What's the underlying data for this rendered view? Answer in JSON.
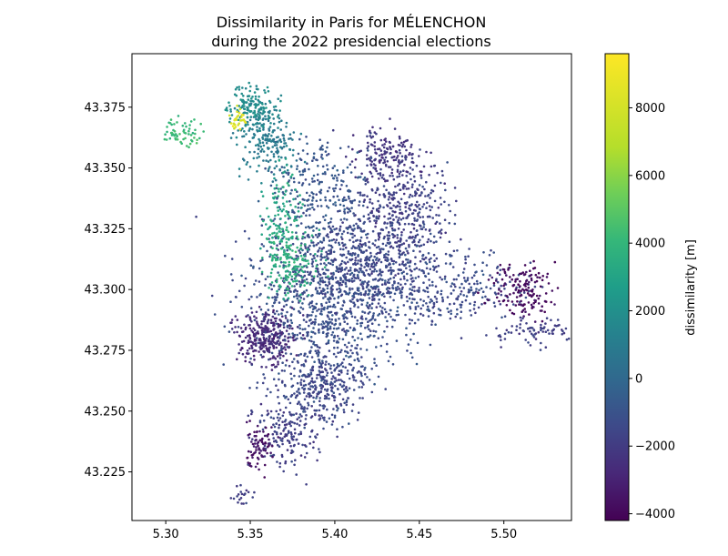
{
  "chart_data": {
    "type": "scatter",
    "title": [
      "Dissimilarity in Paris for MÉLENCHON",
      "during the 2022 presidencial elections"
    ],
    "xlabel": "",
    "ylabel": "",
    "xlim": [
      5.28,
      5.54
    ],
    "ylim": [
      43.205,
      43.397
    ],
    "x_ticks": [
      5.3,
      5.35,
      5.4,
      5.45,
      5.5
    ],
    "x_tick_labels": [
      "5.30",
      "5.35",
      "5.40",
      "5.45",
      "5.50"
    ],
    "y_ticks": [
      43.225,
      43.25,
      43.275,
      43.3,
      43.325,
      43.35,
      43.375
    ],
    "y_tick_labels": [
      "43.225",
      "43.250",
      "43.275",
      "43.300",
      "43.325",
      "43.350",
      "43.375"
    ],
    "grid": false,
    "colorbar": {
      "label": "dissimilarity [m]",
      "range": [
        -4200,
        9600
      ],
      "ticks": [
        -4000,
        -2000,
        0,
        2000,
        4000,
        6000,
        8000
      ],
      "tick_labels": [
        "−4000",
        "−2000",
        "0",
        "2000",
        "4000",
        "6000",
        "8000"
      ],
      "colormap": "viridis"
    },
    "clusters": [
      {
        "x": 5.395,
        "y": 43.295,
        "sx": 0.035,
        "sy": 0.022,
        "value": -800,
        "n": 900
      },
      {
        "x": 5.42,
        "y": 43.31,
        "sx": 0.03,
        "sy": 0.015,
        "value": -1200,
        "n": 500
      },
      {
        "x": 5.44,
        "y": 43.335,
        "sx": 0.02,
        "sy": 0.015,
        "value": -1500,
        "n": 350
      },
      {
        "x": 5.43,
        "y": 43.355,
        "sx": 0.015,
        "sy": 0.008,
        "value": -2000,
        "n": 150
      },
      {
        "x": 5.39,
        "y": 43.34,
        "sx": 0.02,
        "sy": 0.015,
        "value": -500,
        "n": 250
      },
      {
        "x": 5.36,
        "y": 43.36,
        "sx": 0.012,
        "sy": 0.01,
        "value": 1500,
        "n": 200
      },
      {
        "x": 5.35,
        "y": 43.375,
        "sx": 0.01,
        "sy": 0.006,
        "value": 2500,
        "n": 150
      },
      {
        "x": 5.37,
        "y": 43.33,
        "sx": 0.008,
        "sy": 0.015,
        "value": 4000,
        "n": 120
      },
      {
        "x": 5.375,
        "y": 43.31,
        "sx": 0.012,
        "sy": 0.01,
        "value": 4500,
        "n": 150
      },
      {
        "x": 5.31,
        "y": 43.365,
        "sx": 0.008,
        "sy": 0.004,
        "value": 5000,
        "n": 60
      },
      {
        "x": 5.343,
        "y": 43.37,
        "sx": 0.004,
        "sy": 0.003,
        "value": 9000,
        "n": 30
      },
      {
        "x": 5.36,
        "y": 43.28,
        "sx": 0.012,
        "sy": 0.008,
        "value": -2500,
        "n": 300
      },
      {
        "x": 5.39,
        "y": 43.26,
        "sx": 0.02,
        "sy": 0.012,
        "value": -1200,
        "n": 350
      },
      {
        "x": 5.37,
        "y": 43.24,
        "sx": 0.012,
        "sy": 0.01,
        "value": -1500,
        "n": 150
      },
      {
        "x": 5.355,
        "y": 43.235,
        "sx": 0.006,
        "sy": 0.006,
        "value": -3500,
        "n": 80
      },
      {
        "x": 5.47,
        "y": 43.3,
        "sx": 0.03,
        "sy": 0.01,
        "value": -1000,
        "n": 250
      },
      {
        "x": 5.51,
        "y": 43.3,
        "sx": 0.015,
        "sy": 0.008,
        "value": -3800,
        "n": 150
      },
      {
        "x": 5.52,
        "y": 43.282,
        "sx": 0.02,
        "sy": 0.004,
        "value": -1500,
        "n": 80
      },
      {
        "x": 5.345,
        "y": 43.215,
        "sx": 0.005,
        "sy": 0.003,
        "value": -1500,
        "n": 20
      }
    ]
  }
}
